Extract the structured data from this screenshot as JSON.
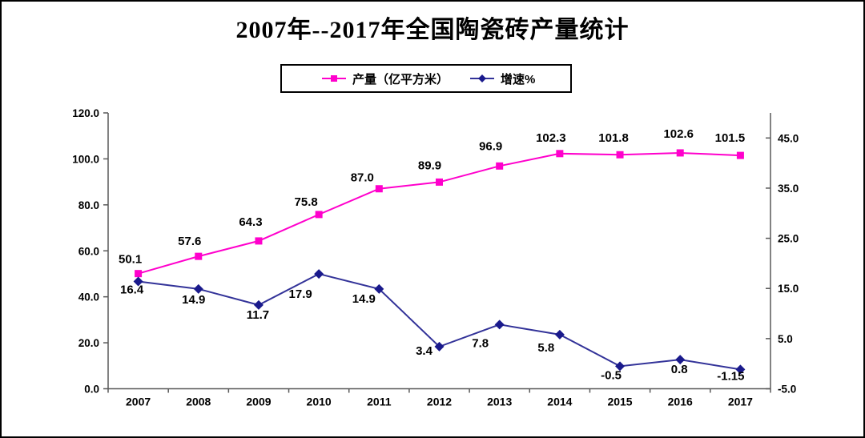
{
  "frame": {
    "background": "#ffffff",
    "border_color": "#000000"
  },
  "title": "2007年--2017年全国陶瓷砖产量统计",
  "chart_data": {
    "type": "line",
    "title": "2007年--2017年全国陶瓷砖产量统计",
    "categories": [
      "2007",
      "2008",
      "2009",
      "2010",
      "2011",
      "2012",
      "2013",
      "2014",
      "2015",
      "2016",
      "2017"
    ],
    "series": [
      {
        "name": "产量（亿平方米）",
        "axis": "left",
        "color": "#ff00cc",
        "marker": "square",
        "marker_color": "#ff00cc",
        "values": [
          50.1,
          57.6,
          64.3,
          75.8,
          87.0,
          89.9,
          96.9,
          102.3,
          101.8,
          102.6,
          101.5
        ],
        "labels": [
          "50.1",
          "57.6",
          "64.3",
          "75.8",
          "87.0",
          "89.9",
          "96.9",
          "102.3",
          "101.8",
          "102.6",
          "101.5"
        ]
      },
      {
        "name": "增速%",
        "axis": "right",
        "color": "#333399",
        "marker": "diamond",
        "marker_color": "#1a1a8c",
        "values": [
          16.4,
          14.9,
          11.7,
          17.9,
          14.9,
          3.4,
          7.8,
          5.8,
          -0.5,
          0.8,
          -1.15
        ],
        "labels": [
          "16.4",
          "14.9",
          "11.7",
          "17.9",
          "14.9",
          "3.4",
          "7.8",
          "5.8",
          "-0.5",
          "0.8",
          "-1.15"
        ]
      }
    ],
    "left_axis": {
      "min": 0,
      "max": 120,
      "tick_labels": [
        "0.0",
        "20.0",
        "40.0",
        "60.0",
        "80.0",
        "100.0",
        "120.0"
      ]
    },
    "right_axis": {
      "min": -5,
      "max": 50,
      "tick_labels": [
        "-5.0",
        "5.0",
        "15.0",
        "25.0",
        "35.0",
        "45.0"
      ]
    },
    "grid": false,
    "legend_position": "top-center",
    "axis_color": "#595959",
    "text_color": "#000000"
  }
}
